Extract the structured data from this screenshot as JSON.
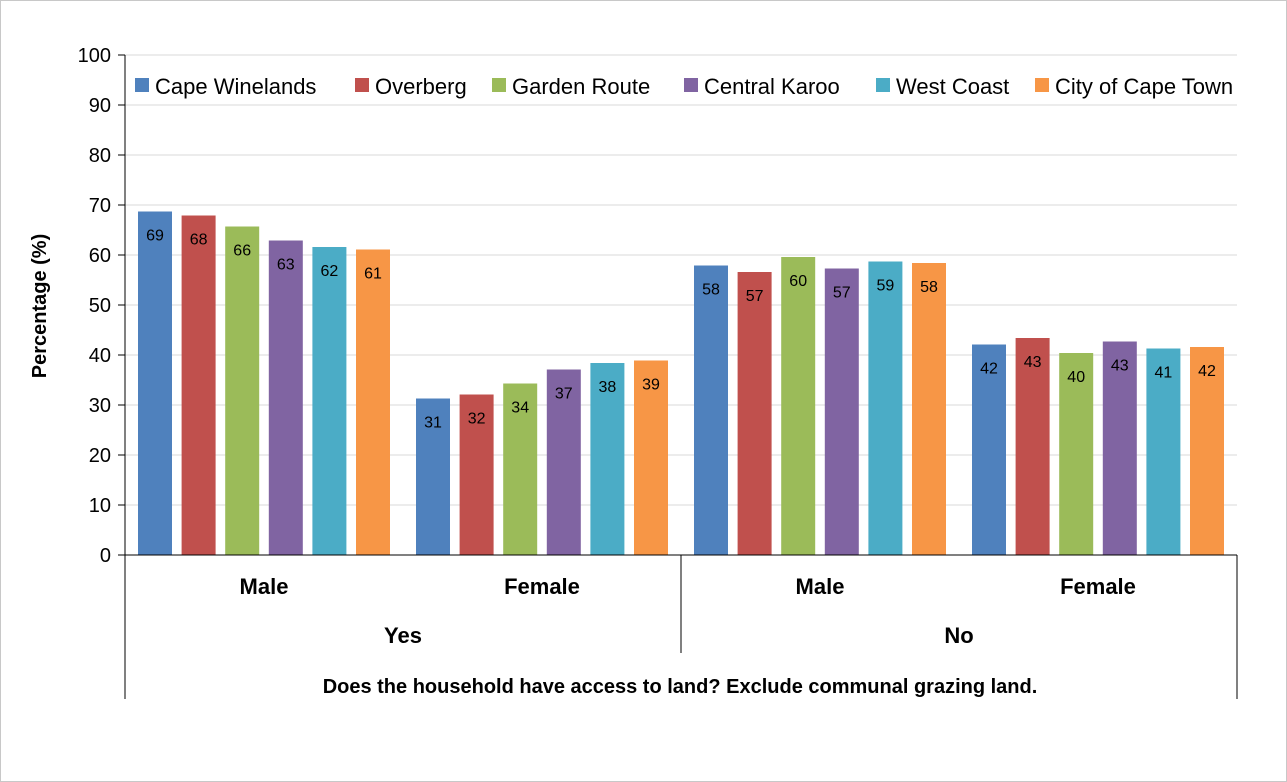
{
  "chart_data": {
    "type": "bar",
    "ylabel": "Percentage (%)",
    "xlabel": "Does the household have access to land? Exclude communal grazing land.",
    "ylim": [
      0,
      100
    ],
    "yticks": [
      "0",
      "10",
      "20",
      "30",
      "40",
      "50",
      "60",
      "70",
      "80",
      "90",
      "100"
    ],
    "grid": true,
    "legend_position": "top",
    "groups": [
      {
        "label": "Yes",
        "categories": [
          "Male",
          "Female"
        ]
      },
      {
        "label": "No",
        "categories": [
          "Male",
          "Female"
        ]
      }
    ],
    "categories": [
      "Yes - Male",
      "Yes - Female",
      "No - Male",
      "No - Female"
    ],
    "series": [
      {
        "name": "Cape Winelands",
        "color": "#4f81bd",
        "values": [
          68.7,
          31.3,
          57.9,
          42.1
        ],
        "labels": [
          "69",
          "31",
          "58",
          "42"
        ]
      },
      {
        "name": "Overberg",
        "color": "#c0504d",
        "values": [
          67.9,
          32.1,
          56.6,
          43.4
        ],
        "labels": [
          "68",
          "32",
          "57",
          "43"
        ]
      },
      {
        "name": "Garden Route",
        "color": "#9bbb59",
        "values": [
          65.7,
          34.3,
          59.6,
          40.4
        ],
        "labels": [
          "66",
          "34",
          "60",
          "40"
        ]
      },
      {
        "name": "Central Karoo",
        "color": "#8064a2",
        "values": [
          62.9,
          37.1,
          57.3,
          42.7
        ],
        "labels": [
          "63",
          "37",
          "57",
          "43"
        ]
      },
      {
        "name": "West Coast",
        "color": "#4bacc6",
        "values": [
          61.6,
          38.4,
          58.7,
          41.3
        ],
        "labels": [
          "62",
          "38",
          "59",
          "41"
        ]
      },
      {
        "name": "City of Cape Town",
        "color": "#f79646",
        "values": [
          61.1,
          38.9,
          58.4,
          41.6
        ],
        "labels": [
          "61",
          "39",
          "58",
          "42"
        ]
      }
    ]
  }
}
